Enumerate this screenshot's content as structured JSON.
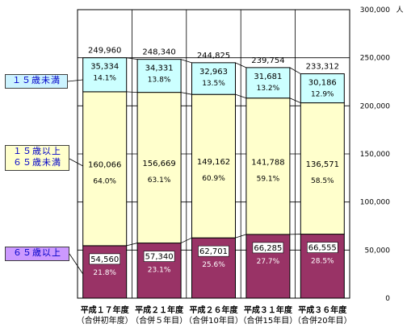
{
  "chart_data": {
    "type": "bar",
    "stacked": true,
    "unit": "人",
    "ylim": [
      0,
      300000
    ],
    "yticks": [
      "0",
      "50,000",
      "100,000",
      "150,000",
      "200,000",
      "250,000",
      "300,000"
    ],
    "grid": true,
    "categories": [
      {
        "line1": "平成１７年度",
        "line2": "（合併初年度）"
      },
      {
        "line1": "平成２１年度",
        "line2": "（合併５年目）"
      },
      {
        "line1": "平成２６年度",
        "line2": "（合併10年目）"
      },
      {
        "line1": "平成３１年度",
        "line2": "（合併15年目）"
      },
      {
        "line1": "平成３６年度",
        "line2": "（合併20年目）"
      }
    ],
    "totals": [
      249960,
      248340,
      244825,
      239754,
      233312
    ],
    "total_labels": [
      "249,960",
      "248,340",
      "244,825",
      "239,754",
      "233,312"
    ],
    "series": [
      {
        "name_lines": [
          "６５歳以上"
        ],
        "color": "#993366",
        "values": [
          54560,
          57340,
          62701,
          66285,
          66555
        ],
        "value_labels": [
          "54,560",
          "57,340",
          "62,701",
          "66,285",
          "66,555"
        ],
        "pct_labels": [
          "21.8%",
          "23.1%",
          "25.6%",
          "27.7%",
          "28.5%"
        ]
      },
      {
        "name_lines": [
          "１５歳以上",
          "６５歳未満"
        ],
        "color": "#ffffcc",
        "values": [
          160066,
          156669,
          149162,
          141788,
          136571
        ],
        "value_labels": [
          "160,066",
          "156,669",
          "149,162",
          "141,788",
          "136,571"
        ],
        "pct_labels": [
          "64.0%",
          "63.1%",
          "60.9%",
          "59.1%",
          "58.5%"
        ]
      },
      {
        "name_lines": [
          "１５歳未満"
        ],
        "color": "#ccffff",
        "values": [
          35334,
          34331,
          32963,
          31681,
          30186
        ],
        "value_labels": [
          "35,334",
          "34,331",
          "32,963",
          "31,681",
          "30,186"
        ],
        "pct_labels": [
          "14.1%",
          "13.8%",
          "13.5%",
          "13.2%",
          "12.9%"
        ]
      }
    ]
  }
}
